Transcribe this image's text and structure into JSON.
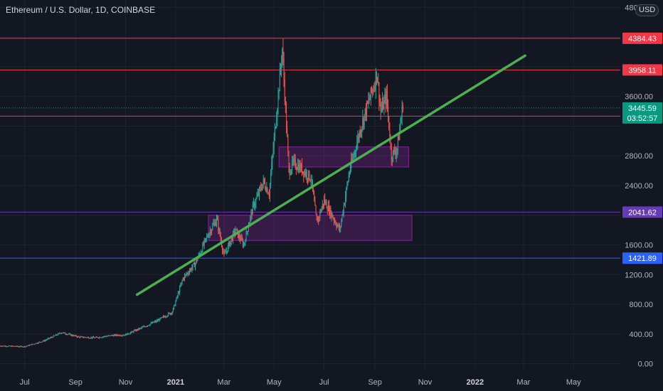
{
  "header": {
    "title": "Ethereum / U.S. Dollar, 1D, COINBASE",
    "currency": "USD"
  },
  "colors": {
    "background": "#131722",
    "grid": "#1f2330",
    "axis_text": "#b2b5be",
    "candle_up": "#26a69a",
    "candle_down": "#ef5350",
    "trendline": "#4caf50",
    "resistance": "#f23645",
    "support_purple": "#673ab7",
    "support_blue": "#2962ff",
    "price": "#089981",
    "zone_fill": "#9c27b0"
  },
  "chart_data": {
    "type": "candlestick",
    "title": "Ethereum / U.S. Dollar, 1D, COINBASE",
    "xlabel": "",
    "ylabel": "",
    "ylim": [
      -100,
      4900
    ],
    "x_start": "2020-06-01",
    "x_end": "2022-06-27",
    "y_ticks": [
      0,
      400,
      800,
      1200,
      1600,
      2000,
      2400,
      2800,
      3200,
      3600,
      4000,
      4400,
      4800
    ],
    "y_tick_labels": [
      "0.00",
      "400.00",
      "800.00",
      "1200.00",
      "1600.00",
      "",
      "2400.00",
      "2800.00",
      "",
      "3600.00",
      "",
      "",
      "4800.00"
    ],
    "x_ticks": [
      {
        "date": "2020-07-01",
        "label": "Jul",
        "bold": false
      },
      {
        "date": "2020-09-01",
        "label": "Sep",
        "bold": false
      },
      {
        "date": "2020-11-01",
        "label": "Nov",
        "bold": false
      },
      {
        "date": "2021-01-01",
        "label": "2021",
        "bold": true
      },
      {
        "date": "2021-03-01",
        "label": "Mar",
        "bold": false
      },
      {
        "date": "2021-05-01",
        "label": "May",
        "bold": false
      },
      {
        "date": "2021-07-01",
        "label": "Jul",
        "bold": false
      },
      {
        "date": "2021-09-01",
        "label": "Sep",
        "bold": false
      },
      {
        "date": "2021-11-01",
        "label": "Nov",
        "bold": false
      },
      {
        "date": "2022-01-01",
        "label": "2022",
        "bold": true
      },
      {
        "date": "2022-03-01",
        "label": "Mar",
        "bold": false
      },
      {
        "date": "2022-05-01",
        "label": "May",
        "bold": false
      }
    ],
    "price_path": [
      [
        "2020-06-01",
        240
      ],
      [
        "2020-07-01",
        230
      ],
      [
        "2020-07-25",
        310
      ],
      [
        "2020-08-15",
        420
      ],
      [
        "2020-09-05",
        360
      ],
      [
        "2020-09-25",
        350
      ],
      [
        "2020-10-15",
        380
      ],
      [
        "2020-11-01",
        390
      ],
      [
        "2020-11-20",
        480
      ],
      [
        "2020-12-10",
        580
      ],
      [
        "2020-12-28",
        700
      ],
      [
        "2021-01-10",
        1150
      ],
      [
        "2021-01-25",
        1350
      ],
      [
        "2021-02-10",
        1750
      ],
      [
        "2021-02-20",
        1950
      ],
      [
        "2021-03-01",
        1450
      ],
      [
        "2021-03-15",
        1800
      ],
      [
        "2021-03-25",
        1600
      ],
      [
        "2021-04-05",
        2100
      ],
      [
        "2021-04-18",
        2450
      ],
      [
        "2021-04-25",
        2300
      ],
      [
        "2021-05-05",
        3500
      ],
      [
        "2021-05-11",
        4250
      ],
      [
        "2021-05-19",
        2600
      ],
      [
        "2021-05-25",
        2700
      ],
      [
        "2021-06-01",
        2650
      ],
      [
        "2021-06-15",
        2500
      ],
      [
        "2021-06-22",
        1900
      ],
      [
        "2021-07-01",
        2200
      ],
      [
        "2021-07-20",
        1800
      ],
      [
        "2021-08-01",
        2600
      ],
      [
        "2021-08-15",
        3200
      ],
      [
        "2021-09-01",
        3800
      ],
      [
        "2021-09-03",
        3950
      ],
      [
        "2021-09-08",
        3400
      ],
      [
        "2021-09-15",
        3600
      ],
      [
        "2021-09-21",
        2800
      ],
      [
        "2021-09-28",
        2900
      ],
      [
        "2021-10-05",
        3500
      ]
    ],
    "candle_seed": 7,
    "current_price": 3445.59,
    "countdown": "03:52:57",
    "levels": [
      {
        "label": "4384.43",
        "value": 4384.43,
        "color": "#f23645"
      },
      {
        "label": "3958.11",
        "value": 3958.11,
        "color": "#f23645"
      },
      {
        "label": "3335.26",
        "value": 3335.26,
        "color": "#f23645"
      },
      {
        "label": "2041.62",
        "value": 2041.62,
        "color": "#673ab7"
      },
      {
        "label": "1421.89",
        "value": 1421.89,
        "color": "#2962ff"
      }
    ],
    "zones": [
      {
        "x_start": "2021-05-07",
        "x_end": "2021-10-12",
        "y_low": 2650,
        "y_high": 2920
      },
      {
        "x_start": "2021-02-10",
        "x_end": "2021-10-16",
        "y_low": 1660,
        "y_high": 2000
      }
    ],
    "trendline": {
      "x1": "2020-11-15",
      "y1": 930,
      "x2": "2022-03-03",
      "y2": 4150
    }
  }
}
